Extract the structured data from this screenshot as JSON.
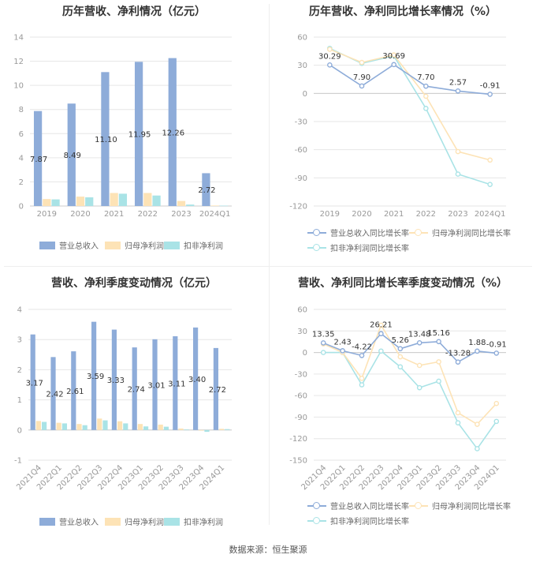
{
  "source": "数据来源：恒生聚源",
  "colors": {
    "revenue": "#8eacd9",
    "net_profit": "#fde3b6",
    "deducted": "#a9e3e6"
  },
  "chart_data": [
    {
      "type": "bar",
      "title": "历年营收、净利情况（亿元）",
      "categories": [
        "2019",
        "2020",
        "2021",
        "2022",
        "2023",
        "2024Q1"
      ],
      "ylim": [
        0,
        14
      ],
      "yticks": [
        0,
        2,
        4,
        6,
        8,
        10,
        12,
        14
      ],
      "series": [
        {
          "name": "营业总收入",
          "values": [
            7.87,
            8.49,
            11.1,
            11.95,
            12.26,
            2.72
          ],
          "labels": [
            "7.87",
            "8.49",
            "11.10",
            "11.95",
            "12.26",
            "2.72"
          ]
        },
        {
          "name": "归母净利润",
          "values": [
            0.58,
            0.78,
            1.08,
            1.08,
            0.42,
            0.04
          ]
        },
        {
          "name": "扣非净利润",
          "values": [
            0.55,
            0.72,
            1.02,
            0.87,
            0.12,
            0.03
          ]
        }
      ]
    },
    {
      "type": "line",
      "title": "历年营收、净利同比增长率情况（%）",
      "categories": [
        "2019",
        "2020",
        "2021",
        "2022",
        "2023",
        "2024Q1"
      ],
      "ylim": [
        -120,
        60
      ],
      "yticks": [
        -120,
        -90,
        -60,
        -30,
        0,
        30,
        60
      ],
      "series": [
        {
          "name": "营业总收入同比增长率",
          "values": [
            30.29,
            7.9,
            30.69,
            7.7,
            2.57,
            -0.91
          ],
          "labels": [
            "30.29",
            "7.90",
            "30.69",
            "7.70",
            "2.57",
            "-0.91"
          ]
        },
        {
          "name": "归母净利润同比增长率",
          "values": [
            47,
            33,
            41,
            -3,
            -62,
            -71
          ]
        },
        {
          "name": "扣非净利润同比增长率",
          "values": [
            48,
            32,
            40,
            -16,
            -86,
            -97
          ]
        }
      ]
    },
    {
      "type": "bar",
      "title": "营收、净利季度变动情况（亿元）",
      "categories": [
        "2021Q4",
        "2022Q1",
        "2022Q2",
        "2022Q3",
        "2022Q4",
        "2023Q1",
        "2023Q2",
        "2023Q3",
        "2023Q4",
        "2024Q1"
      ],
      "ylim": [
        -1,
        4
      ],
      "yticks": [
        -1,
        0,
        1,
        2,
        3,
        4
      ],
      "series": [
        {
          "name": "营业总收入",
          "values": [
            3.17,
            2.42,
            2.61,
            3.59,
            3.33,
            2.74,
            3.01,
            3.11,
            3.4,
            2.72
          ],
          "labels": [
            "3.17",
            "2.42",
            "2.61",
            "3.59",
            "3.33",
            "2.74",
            "3.01",
            "3.11",
            "3.40",
            "2.72"
          ]
        },
        {
          "name": "归母净利润",
          "values": [
            0.3,
            0.24,
            0.2,
            0.38,
            0.29,
            0.2,
            0.18,
            0.05,
            -0.02,
            0.04
          ]
        },
        {
          "name": "扣非净利润",
          "values": [
            0.27,
            0.22,
            0.16,
            0.32,
            0.22,
            0.12,
            0.11,
            0.02,
            -0.06,
            0.03
          ]
        }
      ]
    },
    {
      "type": "line",
      "title": "营收、净利同比增长率季度变动情况（%）",
      "categories": [
        "2021Q4",
        "2022Q1",
        "2022Q2",
        "2022Q3",
        "2022Q4",
        "2023Q1",
        "2023Q2",
        "2023Q3",
        "2023Q4",
        "2024Q1"
      ],
      "ylim": [
        -150,
        60
      ],
      "yticks": [
        -150,
        -120,
        -90,
        -60,
        -30,
        0,
        30,
        60
      ],
      "series": [
        {
          "name": "营业总收入同比增长率",
          "values": [
            13.35,
            2.43,
            -4.22,
            26.21,
            5.26,
            13.48,
            15.16,
            -13.28,
            1.88,
            -0.91
          ],
          "labels": [
            "13.35",
            "2.43",
            "-4.22",
            "26.21",
            "5.26",
            "13.48",
            "15.16",
            "-13.28",
            "1.88",
            "-0.91"
          ]
        },
        {
          "name": "归母净利润同比增长率",
          "values": [
            12,
            0,
            -36,
            38,
            -6,
            -18,
            -13,
            -84,
            -100,
            -71
          ]
        },
        {
          "name": "扣非净利润同比增长率",
          "values": [
            0,
            0,
            -45,
            2,
            -20,
            -49,
            -40,
            -98,
            -134,
            -96
          ]
        }
      ]
    }
  ]
}
